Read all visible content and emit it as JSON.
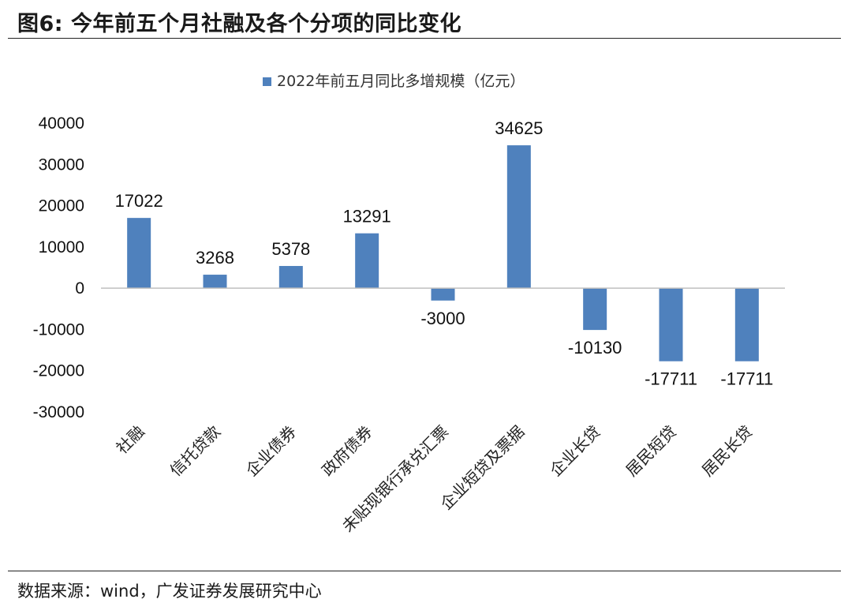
{
  "figure": {
    "title": "图6:  今年前五个月社融及各个分项的同比变化",
    "source": "数据来源：wind，广发证券发展研究中心"
  },
  "chart_data": {
    "type": "bar",
    "title": "",
    "xlabel": "",
    "ylabel": "",
    "ylim": [
      -30000,
      40000
    ],
    "yticks": [
      40000,
      30000,
      20000,
      10000,
      0,
      -10000,
      -20000,
      -30000
    ],
    "grid": false,
    "legend": "top-center",
    "categories": [
      "社融",
      "信托贷款",
      "企业债券",
      "政府债券",
      "未贴现银行承兑汇票",
      "企业短贷及票据",
      "企业长贷",
      "居民短贷",
      "居民长贷"
    ],
    "series": [
      {
        "name": "2022年前五月同比多增规模（亿元）",
        "color": "#4f81bd",
        "values": [
          17022,
          3268,
          5378,
          13291,
          -3000,
          34625,
          -10130,
          -17711,
          -17711
        ]
      }
    ]
  }
}
